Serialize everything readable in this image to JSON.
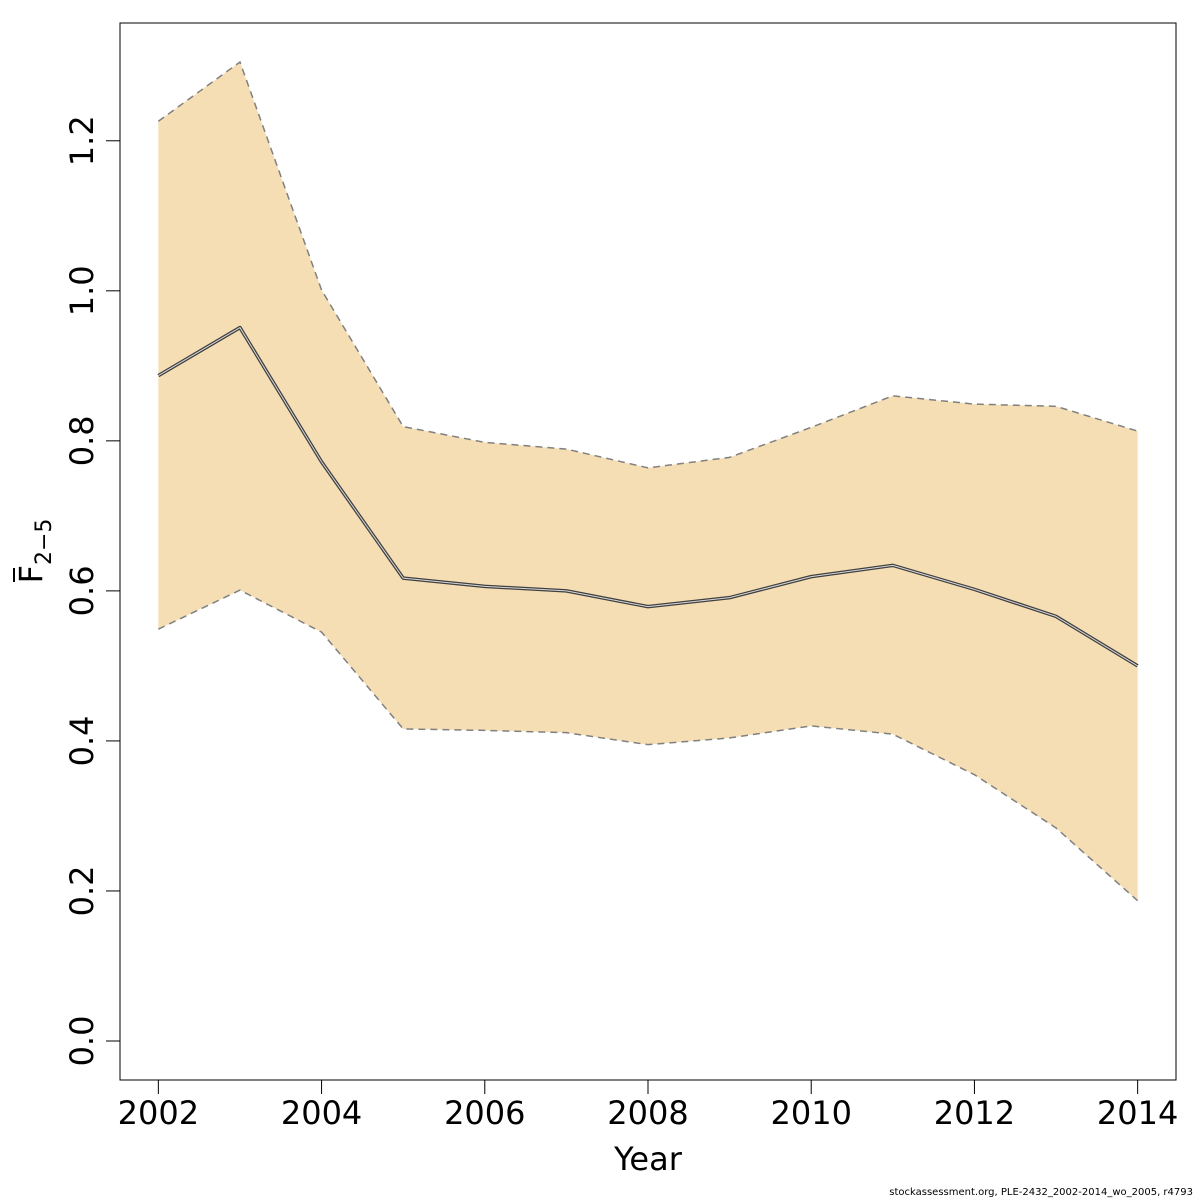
{
  "chart_data": {
    "type": "area",
    "title": "",
    "xlabel": "Year",
    "ylabel": {
      "base": "F",
      "subscript": "2−5",
      "overline": true
    },
    "x": [
      2002,
      2003,
      2004,
      2005,
      2006,
      2007,
      2008,
      2009,
      2010,
      2011,
      2012,
      2013,
      2014
    ],
    "series": [
      {
        "values": [
          0.887,
          0.951,
          0.772,
          0.617,
          0.606,
          0.6,
          0.579,
          0.591,
          0.619,
          0.634,
          0.602,
          0.566,
          0.5
        ],
        "lower": [
          0.549,
          0.601,
          0.545,
          0.416,
          0.414,
          0.411,
          0.395,
          0.404,
          0.42,
          0.409,
          0.355,
          0.284,
          0.187
        ],
        "upper": [
          1.226,
          1.305,
          1.001,
          0.819,
          0.798,
          0.789,
          0.764,
          0.778,
          0.818,
          0.86,
          0.849,
          0.846,
          0.813
        ]
      }
    ],
    "xlim": [
      2001.53,
      2014.47
    ],
    "ylim": [
      -0.052,
      1.357
    ],
    "xticks": [
      "2002",
      "2004",
      "2006",
      "2008",
      "2010",
      "2012",
      "2014"
    ],
    "yticks": [
      "0.0",
      "0.2",
      "0.4",
      "0.6",
      "0.8",
      "1.0",
      "1.2"
    ],
    "grid": false,
    "legend": "none",
    "colors": {
      "band": "#f5deb3",
      "band_edge": "#808080",
      "line": "#404040",
      "axis": "#000000"
    }
  },
  "footnote": "stockassessment.org, PLE-2432_2002-2014_wo_2005, r4793"
}
